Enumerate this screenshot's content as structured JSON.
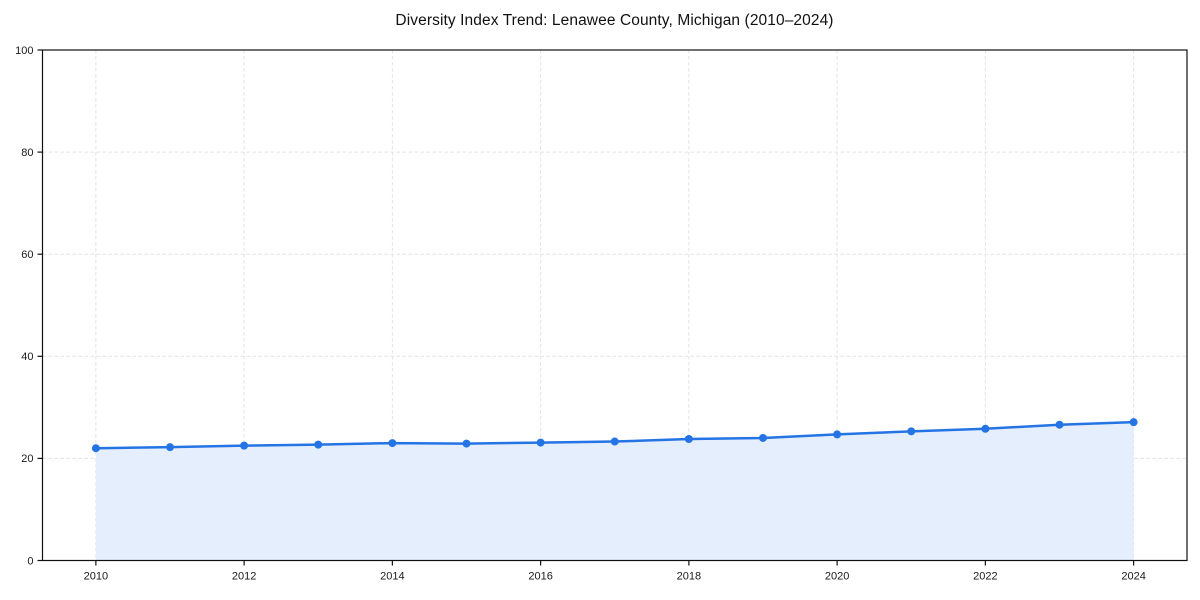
{
  "header": {
    "title": "Diversity Index Trend: Lenawee County, Michigan (2010–2024)"
  },
  "chart_data": {
    "type": "area",
    "title": "Diversity Index Trend: Lenawee County, Michigan (2010–2024)",
    "xlabel": "",
    "ylabel": "",
    "x": [
      2010,
      2011,
      2012,
      2013,
      2014,
      2015,
      2016,
      2017,
      2018,
      2019,
      2020,
      2021,
      2022,
      2023,
      2024
    ],
    "series": [
      {
        "name": "Diversity Index",
        "values": [
          22.0,
          22.2,
          22.5,
          22.7,
          23.0,
          22.9,
          23.1,
          23.3,
          23.8,
          24.0,
          24.7,
          25.3,
          25.8,
          26.6,
          27.1
        ]
      }
    ],
    "xticks": [
      2010,
      2012,
      2014,
      2016,
      2018,
      2020,
      2022,
      2024
    ],
    "xtick_labels": [
      "2010",
      "2012",
      "2014",
      "2016",
      "2018",
      "2020",
      "2022",
      "2024"
    ],
    "yticks": [
      0,
      20,
      40,
      60,
      80,
      100
    ],
    "ytick_labels": [
      "0",
      "20",
      "40",
      "60",
      "80",
      "100"
    ],
    "xlim": [
      2009.28,
      2024.72
    ],
    "ylim": [
      0,
      100
    ],
    "grid": "dashed",
    "legend": "none",
    "colors": {
      "line": "#2474E6",
      "marker": "#2474E6",
      "fill": "#E5EEFC",
      "grid": "#E2E2E2",
      "spine": "#111111",
      "tick_text": "#1A1A1A",
      "title_text": "#111111",
      "background": "#FFFFFF"
    }
  }
}
